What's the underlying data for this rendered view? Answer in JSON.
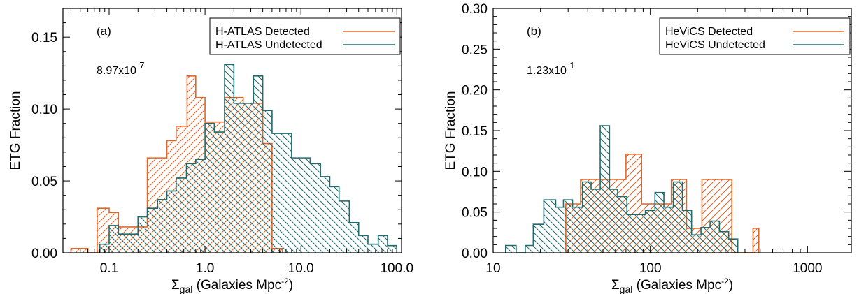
{
  "colors": {
    "detected": "#e0672a",
    "undetected": "#1f6b6e",
    "axis": "#000000"
  },
  "chart_data": [
    {
      "type": "bar",
      "panel_label": "(a)",
      "annotation_mantissa": "8.97x10",
      "annotation_exponent": "-7",
      "xscale": "log",
      "xlim": [
        0.033,
        112
      ],
      "ylim": [
        0,
        0.17
      ],
      "xlabel": {
        "symbol": "Σ",
        "subscript": "gal",
        "text": " (Galaxies Mpc",
        "superscript": "-2",
        "close": ")"
      },
      "ylabel": "ETG Fraction",
      "xticks": [
        {
          "value": 0.1,
          "label": "0.1"
        },
        {
          "value": 1,
          "label": "1.0"
        },
        {
          "value": 10,
          "label": "10.0"
        },
        {
          "value": 100,
          "label": "100.0"
        }
      ],
      "yticks": [
        {
          "value": 0,
          "label": "0.00"
        },
        {
          "value": 0.05,
          "label": "0.05"
        },
        {
          "value": 0.1,
          "label": "0.10"
        },
        {
          "value": 0.15,
          "label": "0.15"
        }
      ],
      "y_minor_step": 0.01,
      "legend": {
        "position": "top-right"
      },
      "series": [
        {
          "name": "H-ATLAS Detected",
          "color_key": "detected",
          "hatch": "forward",
          "bin_edges": [
            0.04,
            0.05,
            0.06,
            0.075,
            0.1,
            0.125,
            0.16,
            0.25,
            0.32,
            0.4,
            0.5,
            0.65,
            0.8,
            1.0,
            1.25,
            1.6,
            2.0,
            2.5,
            3.2,
            4.0,
            5.0,
            6.4
          ],
          "values": [
            0.003,
            0.003,
            0.0,
            0.031,
            0.028,
            0.018,
            0.018,
            0.066,
            0.066,
            0.078,
            0.088,
            0.123,
            0.108,
            0.091,
            0.091,
            0.108,
            0.108,
            0.104,
            0.104,
            0.076,
            0.003
          ]
        },
        {
          "name": "H-ATLAS Undetected",
          "color_key": "undetected",
          "hatch": "back",
          "bin_edges": [
            0.08,
            0.1,
            0.125,
            0.16,
            0.2,
            0.25,
            0.32,
            0.4,
            0.5,
            0.64,
            0.8,
            1.0,
            1.25,
            1.6,
            2.0,
            2.5,
            3.2,
            4.0,
            5.0,
            6.4,
            8.0,
            10.0,
            12.5,
            16.0,
            20.0,
            25.0,
            32.0,
            40.0,
            50.0,
            64.0,
            80.0,
            100.0
          ],
          "values": [
            0.006,
            0.019,
            0.013,
            0.013,
            0.025,
            0.031,
            0.037,
            0.043,
            0.052,
            0.062,
            0.065,
            0.09,
            0.084,
            0.131,
            0.104,
            0.104,
            0.123,
            0.099,
            0.083,
            0.083,
            0.066,
            0.066,
            0.062,
            0.053,
            0.046,
            0.036,
            0.021,
            0.012,
            0.006,
            0.012,
            0.005
          ]
        }
      ]
    },
    {
      "type": "bar",
      "panel_label": "(b)",
      "annotation_mantissa": "1.23x10",
      "annotation_exponent": "-1",
      "xscale": "log",
      "xlim": [
        10,
        1900
      ],
      "ylim": [
        0,
        0.3
      ],
      "xlabel": {
        "symbol": "Σ",
        "subscript": "gal",
        "text": " (Galaxies Mpc",
        "superscript": "-2",
        "close": ")"
      },
      "ylabel": "ETG Fraction",
      "xticks": [
        {
          "value": 10,
          "label": "10"
        },
        {
          "value": 100,
          "label": "100"
        },
        {
          "value": 1000,
          "label": "1000"
        }
      ],
      "yticks": [
        {
          "value": 0,
          "label": "0.00"
        },
        {
          "value": 0.05,
          "label": "0.05"
        },
        {
          "value": 0.1,
          "label": "0.10"
        },
        {
          "value": 0.15,
          "label": "0.15"
        },
        {
          "value": 0.2,
          "label": "0.20"
        },
        {
          "value": 0.25,
          "label": "0.25"
        },
        {
          "value": 0.3,
          "label": "0.30"
        }
      ],
      "y_minor_step": 0.01,
      "legend": {
        "position": "top-right"
      },
      "series": [
        {
          "name": "HeViCS Detected",
          "color_key": "detected",
          "hatch": "forward",
          "bin_edges": [
            29,
            36,
            45,
            56,
            70,
            88,
            110,
            136,
            170,
            213,
            266,
            330,
            410,
            450,
            490
          ],
          "values": [
            0.06,
            0.09,
            0.09,
            0.09,
            0.121,
            0.06,
            0.06,
            0.09,
            0.03,
            0.09,
            0.09,
            0.0,
            0.0,
            0.03
          ]
        },
        {
          "name": "HeViCS Undetected",
          "color_key": "undetected",
          "hatch": "back",
          "bin_edges": [
            12,
            14,
            16,
            18,
            21,
            25,
            28,
            32,
            37,
            42,
            48,
            55,
            62,
            71,
            81,
            93,
            107,
            122,
            140,
            160,
            183,
            210,
            240,
            275,
            315,
            360
          ],
          "values": [
            0.009,
            0.0,
            0.009,
            0.035,
            0.065,
            0.056,
            0.065,
            0.056,
            0.087,
            0.078,
            0.156,
            0.078,
            0.069,
            0.047,
            0.047,
            0.052,
            0.074,
            0.056,
            0.087,
            0.052,
            0.022,
            0.031,
            0.039,
            0.026,
            0.017
          ]
        }
      ]
    }
  ]
}
